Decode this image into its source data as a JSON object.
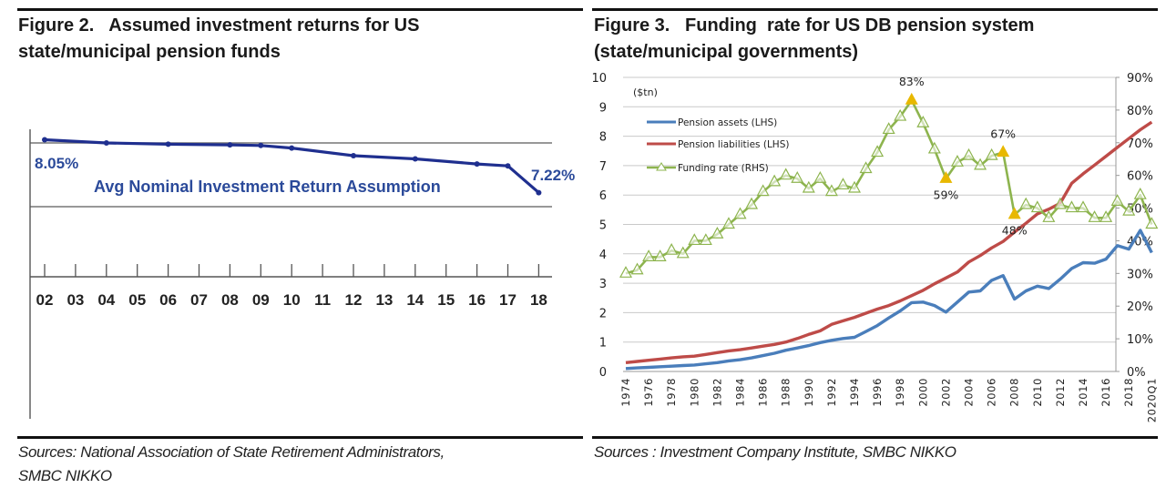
{
  "figures": [
    {
      "title_line1": "Figure 2.   Assumed investment returns for US",
      "title_line2": "state/municipal pension funds",
      "source_line1": "Sources: National Association of State Retirement Administrators,",
      "source_line2": "SMBC NIKKO"
    },
    {
      "title_line1": "Figure 3.   Funding  rate for US DB pension system",
      "title_line2": "(state/municipal governments)",
      "source_line1": "Sources : Investment Company Institute, SMBC NIKKO"
    }
  ],
  "chart_data": [
    {
      "type": "line",
      "title": "Assumed investment returns for US state/municipal pension funds",
      "series_label": "Avg Nominal Investment Return Assumption",
      "x": [
        "02",
        "03",
        "04",
        "05",
        "06",
        "07",
        "08",
        "09",
        "10",
        "11",
        "12",
        "13",
        "14",
        "15",
        "16",
        "17",
        "18"
      ],
      "series": [
        {
          "name": "Avg Nominal Investment Return Assumption",
          "x": [
            "02",
            "04",
            "06",
            "08",
            "09",
            "10",
            "12",
            "14",
            "16",
            "17",
            "18"
          ],
          "values": [
            8.05,
            8.0,
            7.98,
            7.97,
            7.96,
            7.92,
            7.8,
            7.75,
            7.67,
            7.64,
            7.22
          ],
          "color": "#1f2f8f"
        }
      ],
      "annotations": [
        {
          "x": "02",
          "label": "8.05%"
        },
        {
          "x": "18",
          "label": "7.22%"
        }
      ],
      "ylim": [
        6.5,
        8.5
      ],
      "grid": true,
      "xlabel": "",
      "ylabel": ""
    },
    {
      "type": "line",
      "title": "Funding rate for US DB pension system (state/municipal governments)",
      "unit_label": "($tn)",
      "x_ticks": [
        "1974",
        "1976",
        "1978",
        "1980",
        "1982",
        "1984",
        "1986",
        "1988",
        "1990",
        "1992",
        "1994",
        "1996",
        "1998",
        "2000",
        "2002",
        "2004",
        "2006",
        "2008",
        "2010",
        "2012",
        "2014",
        "2016",
        "2018",
        "2020Q1"
      ],
      "x": [
        "1974",
        "1975",
        "1976",
        "1977",
        "1978",
        "1979",
        "1980",
        "1981",
        "1982",
        "1983",
        "1984",
        "1985",
        "1986",
        "1987",
        "1988",
        "1989",
        "1990",
        "1991",
        "1992",
        "1993",
        "1994",
        "1995",
        "1996",
        "1997",
        "1998",
        "1999",
        "2000",
        "2001",
        "2002",
        "2003",
        "2004",
        "2005",
        "2006",
        "2007",
        "2008",
        "2009",
        "2010",
        "2011",
        "2012",
        "2013",
        "2014",
        "2015",
        "2016",
        "2017",
        "2018",
        "2019",
        "2020Q1"
      ],
      "left_axis": {
        "ylim": [
          0,
          10
        ],
        "ticks": [
          "0",
          "1",
          "2",
          "3",
          "4",
          "5",
          "6",
          "7",
          "8",
          "9",
          "10"
        ]
      },
      "right_axis": {
        "ylim": [
          0,
          90
        ],
        "ticks": [
          "0%",
          "10%",
          "20%",
          "30%",
          "40%",
          "50%",
          "60%",
          "70%",
          "80%",
          "90%"
        ]
      },
      "series": [
        {
          "name": "Pension assets (LHS)",
          "axis": "left",
          "color": "#4a7ebb",
          "values": [
            0.1,
            0.12,
            0.14,
            0.16,
            0.18,
            0.2,
            0.22,
            0.26,
            0.3,
            0.36,
            0.4,
            0.46,
            0.54,
            0.62,
            0.72,
            0.8,
            0.88,
            0.98,
            1.06,
            1.12,
            1.16,
            1.36,
            1.56,
            1.82,
            2.06,
            2.34,
            2.36,
            2.24,
            2.02,
            2.36,
            2.7,
            2.74,
            3.1,
            3.26,
            2.46,
            2.74,
            2.9,
            2.82,
            3.14,
            3.5,
            3.7,
            3.68,
            3.82,
            4.28,
            4.16,
            4.8,
            4.04
          ]
        },
        {
          "name": "Pension liabilities (LHS)",
          "axis": "left",
          "color": "#be4b48",
          "values": [
            0.3,
            0.34,
            0.38,
            0.42,
            0.46,
            0.5,
            0.52,
            0.58,
            0.64,
            0.7,
            0.74,
            0.8,
            0.86,
            0.92,
            1.0,
            1.12,
            1.26,
            1.38,
            1.6,
            1.72,
            1.84,
            1.98,
            2.12,
            2.24,
            2.4,
            2.58,
            2.76,
            2.98,
            3.18,
            3.38,
            3.72,
            3.94,
            4.2,
            4.42,
            4.74,
            5.04,
            5.36,
            5.52,
            5.72,
            6.4,
            6.72,
            7.02,
            7.32,
            7.62,
            7.92,
            8.22,
            8.48
          ]
        },
        {
          "name": "Funding rate (RHS)",
          "axis": "right",
          "color": "#8db44e",
          "marker": "triangle",
          "values": [
            30,
            31,
            35,
            35,
            37,
            36,
            40,
            40,
            42,
            45,
            48,
            51,
            55,
            58,
            60,
            59,
            56,
            59,
            55,
            57,
            56,
            62,
            67,
            74,
            78,
            83,
            76,
            68,
            59,
            64,
            66,
            63,
            66,
            67,
            48,
            51,
            50,
            47,
            51,
            50,
            50,
            47,
            47,
            52,
            49,
            54,
            45
          ]
        }
      ],
      "annotations": [
        {
          "x": "1999",
          "label": "83%",
          "highlight": true
        },
        {
          "x": "2002",
          "label": "59%",
          "highlight": true
        },
        {
          "x": "2007",
          "label": "67%",
          "highlight": true
        },
        {
          "x": "2008",
          "label": "48%",
          "highlight": true
        }
      ],
      "highlight_color": "#e8b800",
      "legend_position": "top-left",
      "grid": true
    }
  ]
}
